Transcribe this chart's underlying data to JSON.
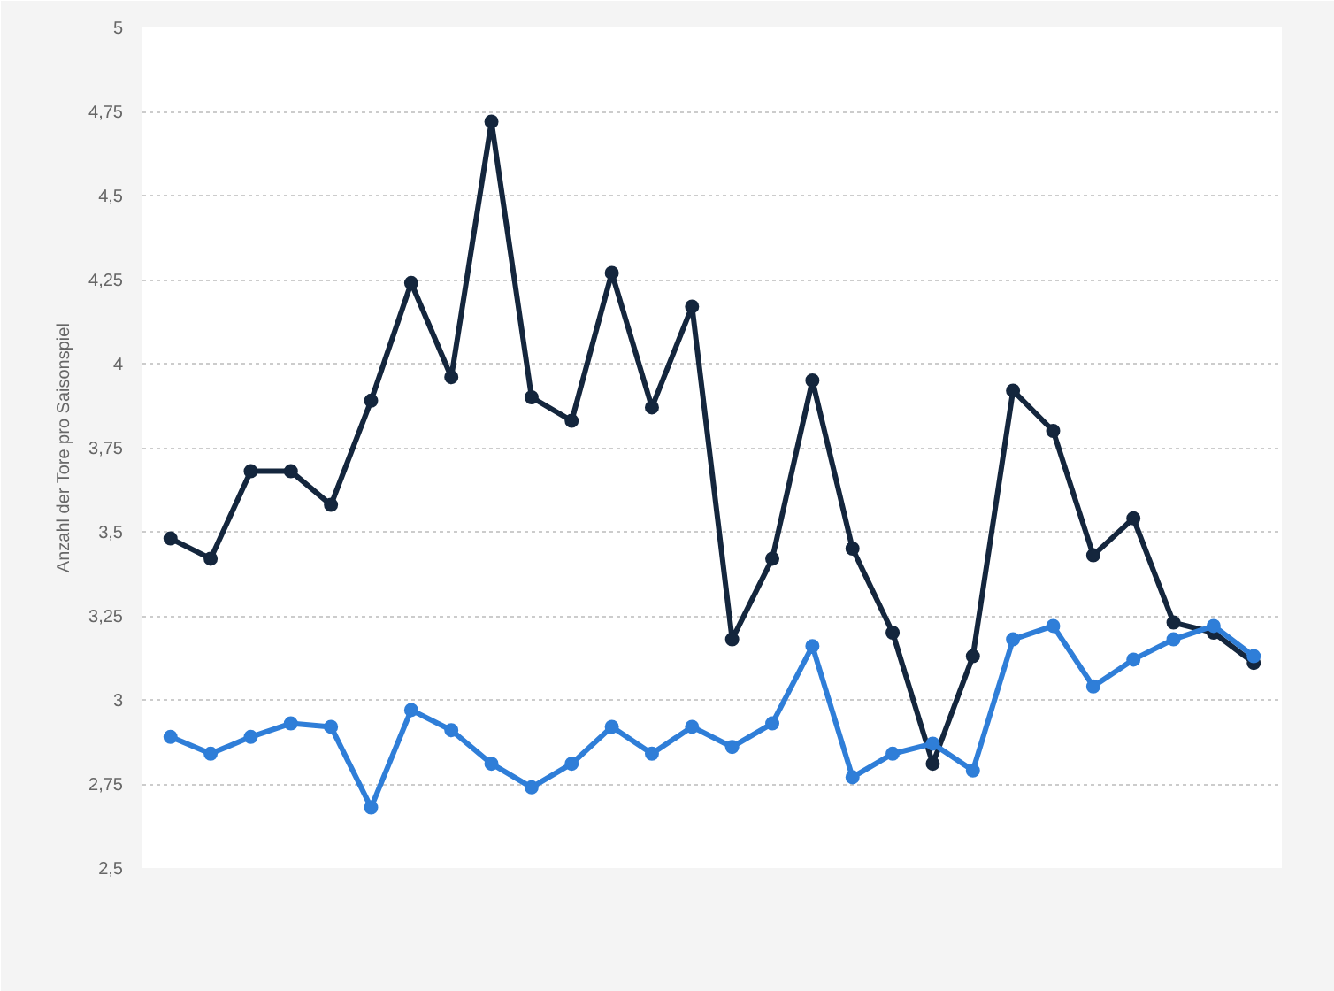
{
  "chart_data": {
    "type": "line",
    "ylabel": "Anzahl der Tore pro Saisonspiel",
    "categories": [
      null,
      null,
      null,
      null,
      null,
      null,
      null,
      null,
      null,
      null,
      null,
      null,
      null,
      null,
      null,
      null,
      null,
      null,
      null,
      null,
      null,
      null,
      null,
      null,
      null,
      null,
      null,
      null
    ],
    "series": [
      {
        "color": "#14263d",
        "values": [
          3.48,
          3.42,
          3.68,
          3.68,
          3.58,
          3.89,
          4.24,
          3.96,
          4.72,
          3.9,
          3.83,
          4.27,
          3.87,
          4.17,
          3.18,
          3.42,
          3.95,
          3.45,
          3.2,
          2.81,
          3.13,
          3.92,
          3.8,
          3.43,
          3.54,
          3.23,
          3.2,
          3.11
        ]
      },
      {
        "color": "#2f7ed8",
        "values": [
          2.89,
          2.84,
          2.89,
          2.93,
          2.92,
          2.68,
          2.97,
          2.91,
          2.81,
          2.74,
          2.81,
          2.92,
          2.84,
          2.92,
          2.86,
          2.93,
          3.16,
          2.77,
          2.84,
          2.87,
          2.79,
          3.18,
          3.22,
          3.04,
          3.12,
          3.18,
          3.22,
          3.13
        ]
      }
    ],
    "ylim": [
      2.5,
      5
    ],
    "yticks": [
      {
        "value": 2.5,
        "label": "2,5"
      },
      {
        "value": 2.75,
        "label": "2,75"
      },
      {
        "value": 3,
        "label": "3"
      },
      {
        "value": 3.25,
        "label": "3,25"
      },
      {
        "value": 3.5,
        "label": "3,5"
      },
      {
        "value": 3.75,
        "label": "3,75"
      },
      {
        "value": 4,
        "label": "4"
      },
      {
        "value": 4.25,
        "label": "4,25"
      },
      {
        "value": 4.5,
        "label": "4,5"
      },
      {
        "value": 4.75,
        "label": "4,75"
      },
      {
        "value": 5,
        "label": "5"
      }
    ],
    "grid": "y",
    "tick_labels": "y",
    "marker": "circle",
    "line_style": "solid"
  }
}
